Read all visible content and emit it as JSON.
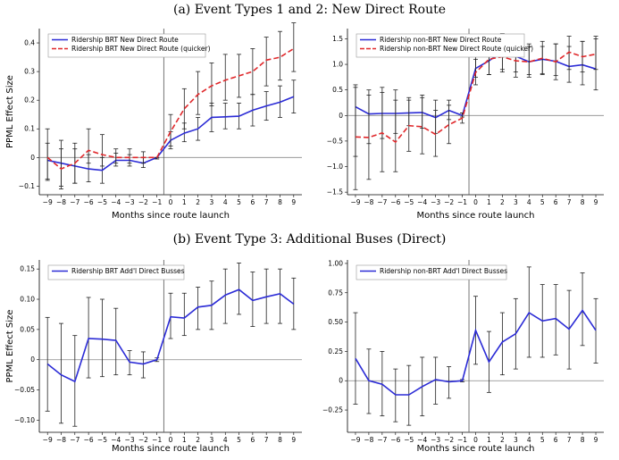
{
  "section_titles": {
    "top": "(a) Event Types 1 and 2: New Direct Route",
    "bottom": "(b) Event Type 3: Additional Buses (Direct)"
  },
  "colors": {
    "blue": "#2b2bd6",
    "red": "#e0282b",
    "error": "#222222",
    "zero": "#888888"
  },
  "chart_data": [
    {
      "id": "a-left",
      "type": "line",
      "xlabel": "Months since route launch",
      "ylabel": "PPML Effect Size",
      "x": [
        -9,
        -8,
        -7,
        -6,
        -5,
        -4,
        -3,
        -2,
        -1,
        0,
        1,
        2,
        3,
        4,
        5,
        6,
        7,
        8,
        9
      ],
      "xticks": [
        -9,
        -8,
        -7,
        -6,
        -5,
        -4,
        -3,
        -2,
        -1,
        0,
        1,
        2,
        3,
        4,
        5,
        6,
        7,
        8,
        9
      ],
      "xlim": [
        -9.6,
        9.6
      ],
      "ylim": [
        -0.13,
        0.45
      ],
      "yticks": [
        -0.1,
        0.0,
        0.1,
        0.2,
        0.3,
        0.4
      ],
      "ytick_labels": [
        "−0.1",
        "0",
        "0.1",
        "0.2",
        "0.3",
        "0.4"
      ],
      "legend": "top-left",
      "zero_line": true,
      "series": [
        {
          "name": "Ridership BRT New Direct Route",
          "style": "solid",
          "color": "blue",
          "values": [
            -0.01,
            -0.02,
            -0.03,
            -0.04,
            -0.045,
            -0.01,
            -0.01,
            -0.02,
            0.0,
            0.06,
            0.085,
            0.1,
            0.14,
            0.142,
            0.144,
            0.165,
            0.18,
            0.193,
            0.212
          ],
          "err_low": [
            -0.075,
            -0.11,
            -0.09,
            -0.085,
            -0.09,
            -0.03,
            -0.03,
            -0.035,
            -0.005,
            0.03,
            0.055,
            0.06,
            0.09,
            0.1,
            0.1,
            0.11,
            0.13,
            0.14,
            0.155
          ],
          "err_high": [
            0.05,
            0.06,
            0.03,
            0.01,
            0.0,
            0.015,
            0.01,
            0.0,
            0.0,
            0.09,
            0.12,
            0.14,
            0.19,
            0.19,
            0.19,
            0.22,
            0.23,
            0.25,
            0.27
          ]
        },
        {
          "name": "Ridership BRT New Direct Route (quicker)",
          "style": "dashed",
          "color": "red",
          "values": [
            0.0,
            -0.04,
            -0.02,
            0.025,
            0.01,
            0.0,
            0.0,
            0.0,
            0.0,
            0.09,
            0.17,
            0.22,
            0.25,
            0.27,
            0.285,
            0.3,
            0.34,
            0.35,
            0.38
          ],
          "err_low": [
            -0.08,
            -0.1,
            -0.09,
            -0.02,
            -0.03,
            -0.02,
            -0.02,
            -0.02,
            -0.005,
            0.04,
            0.1,
            0.15,
            0.18,
            0.2,
            0.21,
            0.22,
            0.25,
            0.27,
            0.3
          ],
          "err_high": [
            0.1,
            0.03,
            0.05,
            0.1,
            0.08,
            0.03,
            0.03,
            0.02,
            0.0,
            0.15,
            0.24,
            0.3,
            0.33,
            0.36,
            0.36,
            0.38,
            0.42,
            0.44,
            0.47
          ]
        }
      ]
    },
    {
      "id": "a-right",
      "type": "line",
      "xlabel": "Months since route launch",
      "ylabel": "",
      "x": [
        -9,
        -8,
        -7,
        -6,
        -5,
        -4,
        -3,
        -2,
        -1,
        0,
        1,
        2,
        3,
        4,
        5,
        6,
        7,
        8,
        9
      ],
      "xticks": [
        -9,
        -8,
        -7,
        -6,
        -5,
        -4,
        -3,
        -2,
        -1,
        0,
        1,
        2,
        3,
        4,
        5,
        6,
        7,
        8,
        9
      ],
      "xlim": [
        -9.6,
        9.6
      ],
      "ylim": [
        -1.55,
        1.7
      ],
      "yticks": [
        -1.5,
        -1.0,
        -0.5,
        0.0,
        0.5,
        1.0,
        1.5
      ],
      "ytick_labels": [
        "−1.5",
        "−1.0",
        "−0.5",
        "0",
        "0.5",
        "1.0",
        "1.5"
      ],
      "legend": "top-left",
      "zero_line": true,
      "series": [
        {
          "name": "Ridership non-BRT New Direct Route",
          "style": "solid",
          "color": "blue",
          "values": [
            0.17,
            0.03,
            0.04,
            0.04,
            0.05,
            0.06,
            -0.04,
            0.1,
            0.0,
            0.92,
            1.07,
            1.25,
            1.16,
            1.05,
            1.1,
            1.06,
            0.96,
            0.99,
            0.91
          ],
          "err_low": [
            -0.8,
            -0.55,
            -0.45,
            -0.35,
            -0.2,
            -0.25,
            -0.35,
            -0.08,
            -0.03,
            0.75,
            0.8,
            0.9,
            0.85,
            0.8,
            0.82,
            0.78,
            0.65,
            0.6,
            0.5
          ],
          "err_high": [
            0.55,
            0.5,
            0.55,
            0.5,
            0.35,
            0.4,
            0.3,
            0.3,
            0.05,
            1.2,
            1.35,
            1.6,
            1.5,
            1.4,
            1.35,
            1.4,
            1.35,
            1.45,
            1.55
          ]
        },
        {
          "name": "Ridership non-BRT New Direct Route (quicker)",
          "style": "dashed",
          "color": "red",
          "values": [
            -0.42,
            -0.43,
            -0.34,
            -0.52,
            -0.2,
            -0.22,
            -0.37,
            -0.18,
            -0.05,
            0.84,
            1.1,
            1.15,
            1.07,
            1.05,
            1.12,
            1.05,
            1.24,
            1.15,
            1.2
          ],
          "err_low": [
            -1.45,
            -1.25,
            -1.1,
            -1.1,
            -0.7,
            -0.75,
            -0.8,
            -0.55,
            -0.15,
            0.6,
            0.8,
            0.85,
            0.75,
            0.75,
            0.8,
            0.7,
            0.9,
            0.85,
            0.9
          ],
          "err_high": [
            0.6,
            0.4,
            0.45,
            0.3,
            0.3,
            0.35,
            0.1,
            0.2,
            0.05,
            1.1,
            1.4,
            1.5,
            1.4,
            1.35,
            1.45,
            1.4,
            1.55,
            1.45,
            1.5
          ]
        }
      ]
    },
    {
      "id": "b-left",
      "type": "line",
      "xlabel": "Months since route launch",
      "ylabel": "PPML Effect Size",
      "x": [
        -9,
        -8,
        -7,
        -6,
        -5,
        -4,
        -3,
        -2,
        -1,
        0,
        1,
        2,
        3,
        4,
        5,
        6,
        7,
        8,
        9
      ],
      "xticks": [
        -9,
        -8,
        -7,
        -6,
        -5,
        -4,
        -3,
        -2,
        -1,
        0,
        1,
        2,
        3,
        4,
        5,
        6,
        7,
        8,
        9
      ],
      "xlim": [
        -9.6,
        9.6
      ],
      "ylim": [
        -0.12,
        0.165
      ],
      "yticks": [
        -0.1,
        -0.05,
        0.0,
        0.05,
        0.1,
        0.15
      ],
      "ytick_labels": [
        "−0.10",
        "−0.05",
        "0",
        "0.05",
        "0.10",
        "0.15"
      ],
      "legend": "top-left",
      "zero_line": true,
      "series": [
        {
          "name": "Ridership BRT Add'l Direct Busses",
          "style": "solid",
          "color": "blue",
          "values": [
            -0.007,
            -0.025,
            -0.036,
            0.035,
            0.034,
            0.032,
            -0.004,
            -0.007,
            0.0,
            0.071,
            0.069,
            0.087,
            0.09,
            0.107,
            0.116,
            0.098,
            0.104,
            0.109,
            0.092
          ],
          "err_low": [
            -0.085,
            -0.105,
            -0.11,
            -0.03,
            -0.028,
            -0.025,
            -0.025,
            -0.03,
            -0.003,
            0.035,
            0.04,
            0.05,
            0.05,
            0.06,
            0.075,
            0.055,
            0.06,
            0.06,
            0.05
          ],
          "err_high": [
            0.07,
            0.06,
            0.04,
            0.103,
            0.1,
            0.085,
            0.015,
            0.013,
            0.003,
            0.11,
            0.11,
            0.12,
            0.13,
            0.15,
            0.16,
            0.145,
            0.15,
            0.15,
            0.135
          ]
        }
      ]
    },
    {
      "id": "b-right",
      "type": "line",
      "xlabel": "Months since route launch",
      "ylabel": "",
      "x": [
        -9,
        -8,
        -7,
        -6,
        -5,
        -4,
        -3,
        -2,
        -1,
        0,
        1,
        2,
        3,
        4,
        5,
        6,
        7,
        8,
        9
      ],
      "xticks": [
        -9,
        -8,
        -7,
        -6,
        -5,
        -4,
        -3,
        -2,
        -1,
        0,
        1,
        2,
        3,
        4,
        5,
        6,
        7,
        8,
        9
      ],
      "xlim": [
        -9.6,
        9.6
      ],
      "ylim": [
        -0.44,
        1.03
      ],
      "yticks": [
        -0.25,
        0.0,
        0.25,
        0.5,
        0.75,
        1.0
      ],
      "ytick_labels": [
        "−0.25",
        "0",
        "0.25",
        "0.50",
        "0.75",
        "1.00"
      ],
      "legend": "top-left",
      "zero_line": true,
      "series": [
        {
          "name": "Ridership non-BRT Add'l Direct Busses",
          "style": "solid",
          "color": "blue",
          "values": [
            0.19,
            0.0,
            -0.03,
            -0.12,
            -0.12,
            -0.05,
            0.01,
            -0.01,
            0.0,
            0.43,
            0.16,
            0.33,
            0.4,
            0.58,
            0.51,
            0.53,
            0.44,
            0.6,
            0.43
          ],
          "err_low": [
            -0.2,
            -0.28,
            -0.3,
            -0.35,
            -0.38,
            -0.3,
            -0.2,
            -0.15,
            -0.01,
            0.14,
            -0.1,
            0.05,
            0.1,
            0.2,
            0.2,
            0.22,
            0.1,
            0.3,
            0.15
          ],
          "err_high": [
            0.58,
            0.27,
            0.25,
            0.1,
            0.13,
            0.2,
            0.2,
            0.12,
            0.01,
            0.72,
            0.42,
            0.58,
            0.7,
            0.97,
            0.82,
            0.82,
            0.77,
            0.92,
            0.7
          ]
        }
      ]
    }
  ]
}
